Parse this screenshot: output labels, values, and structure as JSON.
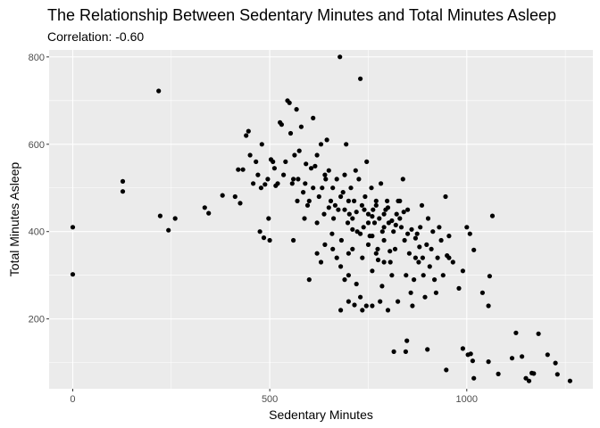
{
  "chart_data": {
    "type": "scatter",
    "title": "The Relationship Between Sedentary Minutes and Total Minutes Asleep",
    "subtitle": "Correlation: -0.60",
    "xlabel": "Sedentary Minutes",
    "ylabel": "Total Minutes Asleep",
    "xlim": [
      -60,
      1320
    ],
    "ylim": [
      40,
      816
    ],
    "x_ticks": [
      0,
      500,
      1000
    ],
    "x_tick_labels": [
      "0",
      "500",
      "1000"
    ],
    "y_ticks": [
      200,
      400,
      600,
      800
    ],
    "y_tick_labels": [
      "200",
      "400",
      "600",
      "800"
    ],
    "x_minor_ticks": [
      250,
      750,
      1250
    ],
    "y_minor_ticks": [
      100,
      300,
      500,
      700
    ],
    "grid": true,
    "legend": "none",
    "colors": {
      "panel": "#EBEBEB",
      "grid": "#FFFFFF",
      "point": "#000000"
    },
    "points": [
      [
        0,
        410
      ],
      [
        0,
        302
      ],
      [
        127,
        515
      ],
      [
        127,
        492
      ],
      [
        218,
        722
      ],
      [
        222,
        436
      ],
      [
        243,
        403
      ],
      [
        260,
        430
      ],
      [
        335,
        455
      ],
      [
        345,
        442
      ],
      [
        380,
        483
      ],
      [
        412,
        480
      ],
      [
        420,
        542
      ],
      [
        425,
        465
      ],
      [
        432,
        542
      ],
      [
        440,
        620
      ],
      [
        446,
        630
      ],
      [
        450,
        575
      ],
      [
        458,
        510
      ],
      [
        465,
        560
      ],
      [
        470,
        530
      ],
      [
        475,
        400
      ],
      [
        478,
        500
      ],
      [
        480,
        600
      ],
      [
        485,
        386
      ],
      [
        488,
        508
      ],
      [
        495,
        520
      ],
      [
        497,
        430
      ],
      [
        500,
        380
      ],
      [
        503,
        565
      ],
      [
        508,
        560
      ],
      [
        512,
        545
      ],
      [
        515,
        505
      ],
      [
        520,
        510
      ],
      [
        526,
        650
      ],
      [
        530,
        645
      ],
      [
        535,
        530
      ],
      [
        540,
        560
      ],
      [
        545,
        700
      ],
      [
        550,
        695
      ],
      [
        553,
        625
      ],
      [
        557,
        510
      ],
      [
        560,
        380
      ],
      [
        563,
        575
      ],
      [
        568,
        680
      ],
      [
        572,
        520
      ],
      [
        575,
        585
      ],
      [
        580,
        640
      ],
      [
        585,
        490
      ],
      [
        588,
        430
      ],
      [
        592,
        555
      ],
      [
        596,
        460
      ],
      [
        600,
        470
      ],
      [
        605,
        545
      ],
      [
        610,
        660
      ],
      [
        615,
        550
      ],
      [
        620,
        420
      ],
      [
        625,
        480
      ],
      [
        630,
        600
      ],
      [
        633,
        500
      ],
      [
        638,
        440
      ],
      [
        642,
        520
      ],
      [
        645,
        610
      ],
      [
        650,
        540
      ],
      [
        655,
        470
      ],
      [
        658,
        395
      ],
      [
        662,
        430
      ],
      [
        666,
        460
      ],
      [
        670,
        520
      ],
      [
        674,
        450
      ],
      [
        678,
        800
      ],
      [
        682,
        380
      ],
      [
        686,
        490
      ],
      [
        690,
        530
      ],
      [
        694,
        600
      ],
      [
        698,
        420
      ],
      [
        702,
        440
      ],
      [
        706,
        500
      ],
      [
        710,
        360
      ],
      [
        714,
        470
      ],
      [
        718,
        540
      ],
      [
        722,
        400
      ],
      [
        726,
        520
      ],
      [
        730,
        750
      ],
      [
        734,
        460
      ],
      [
        738,
        410
      ],
      [
        742,
        480
      ],
      [
        746,
        560
      ],
      [
        750,
        440
      ],
      [
        754,
        390
      ],
      [
        758,
        500
      ],
      [
        762,
        450
      ],
      [
        766,
        420
      ],
      [
        770,
        470
      ],
      [
        774,
        360
      ],
      [
        778,
        430
      ],
      [
        782,
        510
      ],
      [
        786,
        400
      ],
      [
        790,
        380
      ],
      [
        794,
        450
      ],
      [
        798,
        470
      ],
      [
        802,
        420
      ],
      [
        806,
        330
      ],
      [
        810,
        300
      ],
      [
        814,
        400
      ],
      [
        818,
        360
      ],
      [
        822,
        440
      ],
      [
        826,
        470
      ],
      [
        830,
        430
      ],
      [
        834,
        410
      ],
      [
        838,
        520
      ],
      [
        842,
        380
      ],
      [
        846,
        300
      ],
      [
        850,
        450
      ],
      [
        854,
        350
      ],
      [
        858,
        260
      ],
      [
        862,
        230
      ],
      [
        866,
        290
      ],
      [
        870,
        340
      ],
      [
        874,
        395
      ],
      [
        878,
        330
      ],
      [
        882,
        410
      ],
      [
        886,
        460
      ],
      [
        890,
        300
      ],
      [
        894,
        250
      ],
      [
        898,
        370
      ],
      [
        902,
        430
      ],
      [
        906,
        320
      ],
      [
        910,
        360
      ],
      [
        914,
        400
      ],
      [
        918,
        290
      ],
      [
        922,
        260
      ],
      [
        926,
        340
      ],
      [
        930,
        410
      ],
      [
        935,
        380
      ],
      [
        940,
        300
      ],
      [
        946,
        480
      ],
      [
        950,
        345
      ],
      [
        955,
        390
      ],
      [
        965,
        330
      ],
      [
        980,
        270
      ],
      [
        990,
        310
      ],
      [
        1000,
        410
      ],
      [
        1008,
        395
      ],
      [
        1018,
        358
      ],
      [
        1040,
        260
      ],
      [
        1055,
        230
      ],
      [
        1058,
        298
      ],
      [
        1065,
        436
      ],
      [
        780,
        240
      ],
      [
        790,
        330
      ],
      [
        800,
        220
      ],
      [
        815,
        125
      ],
      [
        825,
        240
      ],
      [
        845,
        125
      ],
      [
        848,
        150
      ],
      [
        888,
        340
      ],
      [
        900,
        130
      ],
      [
        948,
        83
      ],
      [
        955,
        340
      ],
      [
        990,
        132
      ],
      [
        1003,
        118
      ],
      [
        1010,
        120
      ],
      [
        1015,
        104
      ],
      [
        1018,
        64
      ],
      [
        1055,
        102
      ],
      [
        1080,
        74
      ],
      [
        1115,
        110
      ],
      [
        1125,
        168
      ],
      [
        1140,
        114
      ],
      [
        1150,
        64
      ],
      [
        1158,
        58
      ],
      [
        1165,
        76
      ],
      [
        1170,
        75
      ],
      [
        1182,
        166
      ],
      [
        1205,
        118
      ],
      [
        1225,
        99
      ],
      [
        1230,
        73
      ],
      [
        1262,
        58
      ],
      [
        690,
        290
      ],
      [
        700,
        300
      ],
      [
        720,
        280
      ],
      [
        730,
        250
      ],
      [
        745,
        230
      ],
      [
        760,
        310
      ],
      [
        775,
        335
      ],
      [
        785,
        275
      ],
      [
        560,
        520
      ],
      [
        570,
        470
      ],
      [
        590,
        510
      ],
      [
        610,
        500
      ],
      [
        620,
        575
      ],
      [
        640,
        530
      ],
      [
        650,
        455
      ],
      [
        660,
        500
      ],
      [
        680,
        480
      ],
      [
        690,
        450
      ],
      [
        700,
        470
      ],
      [
        710,
        430
      ],
      [
        720,
        445
      ],
      [
        740,
        450
      ],
      [
        750,
        420
      ],
      [
        760,
        435
      ],
      [
        770,
        460
      ],
      [
        790,
        440
      ],
      [
        800,
        455
      ],
      [
        810,
        425
      ],
      [
        820,
        415
      ],
      [
        830,
        470
      ],
      [
        840,
        445
      ],
      [
        850,
        395
      ],
      [
        860,
        405
      ],
      [
        870,
        385
      ],
      [
        880,
        365
      ],
      [
        620,
        350
      ],
      [
        630,
        330
      ],
      [
        640,
        370
      ],
      [
        660,
        360
      ],
      [
        670,
        340
      ],
      [
        680,
        320
      ],
      [
        700,
        350
      ],
      [
        710,
        405
      ],
      [
        730,
        395
      ],
      [
        735,
        340
      ],
      [
        750,
        370
      ],
      [
        760,
        390
      ],
      [
        770,
        350
      ],
      [
        790,
        410
      ],
      [
        805,
        355
      ],
      [
        600,
        290
      ],
      [
        680,
        220
      ],
      [
        700,
        240
      ],
      [
        715,
        232
      ],
      [
        735,
        220
      ],
      [
        760,
        230
      ]
    ]
  }
}
